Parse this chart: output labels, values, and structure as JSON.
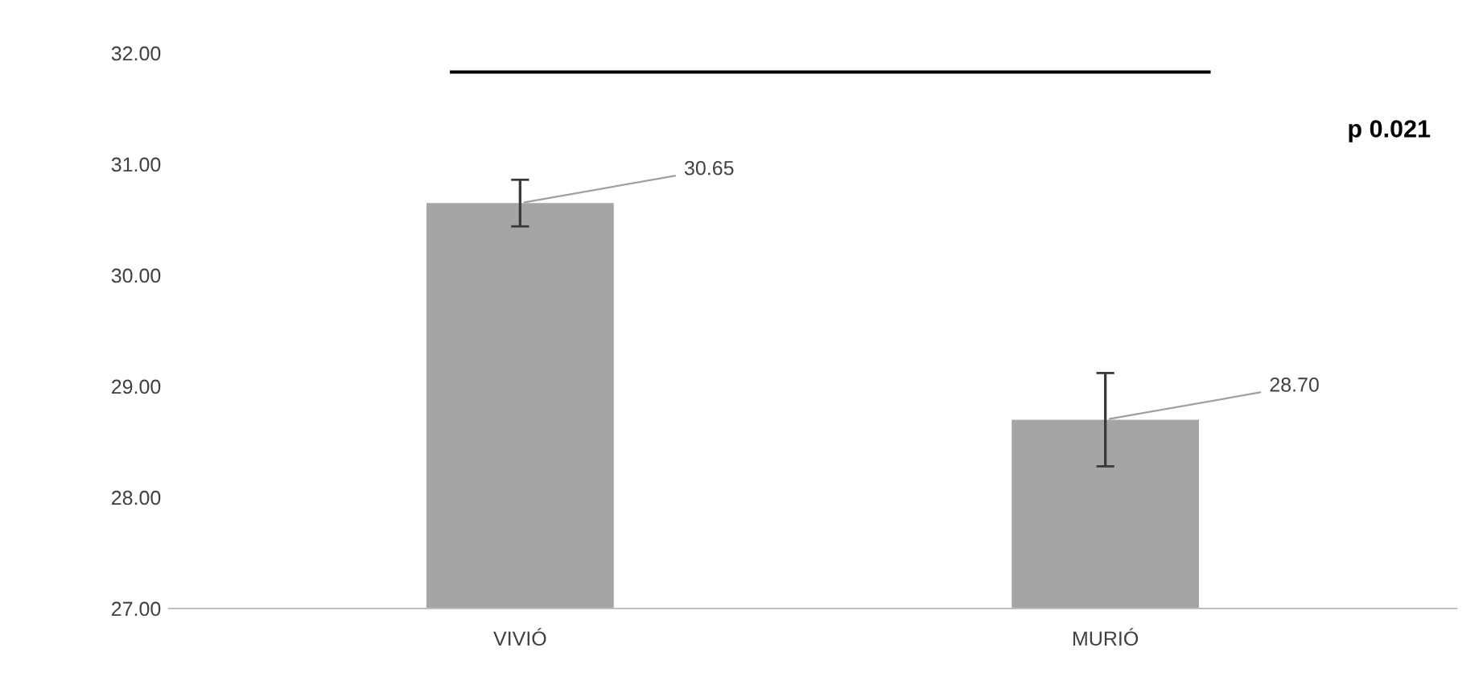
{
  "chart_data": {
    "type": "bar",
    "categories": [
      "VIVIÓ",
      "MURIÓ"
    ],
    "values": [
      30.65,
      28.7
    ],
    "value_labels": [
      "30.65",
      "28.70"
    ],
    "errors": [
      0.21,
      0.42
    ],
    "color": "#a5a5a5",
    "ylim": [
      27,
      32
    ],
    "yticks": [
      {
        "value": 27,
        "label": "27.00"
      },
      {
        "value": 28,
        "label": "28.00"
      },
      {
        "value": 29,
        "label": "29.00"
      },
      {
        "value": 30,
        "label": "30.00"
      },
      {
        "value": 31,
        "label": "31.00"
      },
      {
        "value": 32,
        "label": "32.00"
      }
    ],
    "grid": false,
    "legend": false,
    "ref_lines": [
      {
        "axis": "y",
        "value": 31.83,
        "color": "#000000"
      }
    ],
    "annotations": [
      "p 0.021"
    ]
  }
}
